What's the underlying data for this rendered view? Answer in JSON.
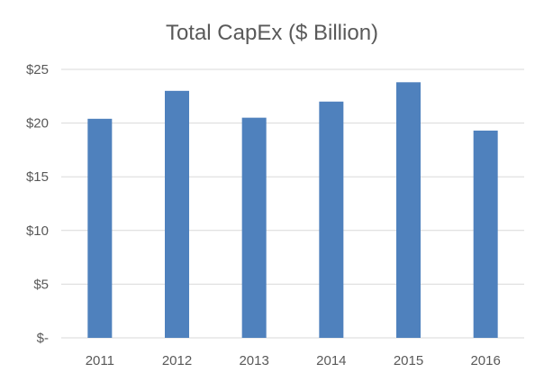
{
  "chart_data": {
    "type": "bar",
    "title": "Total CapEx ($ Billion)",
    "categories": [
      "2011",
      "2012",
      "2013",
      "2014",
      "2015",
      "2016"
    ],
    "values": [
      20.4,
      23.0,
      20.5,
      22.0,
      23.8,
      19.3
    ],
    "ylim": [
      0,
      25
    ],
    "y_ticks": [
      0,
      5,
      10,
      15,
      20,
      25
    ],
    "y_tick_labels": [
      "$-",
      "$5",
      "$10",
      "$15",
      "$20",
      "$25"
    ],
    "grid": true,
    "legend": "none",
    "bar_color": "#4f81bd"
  }
}
